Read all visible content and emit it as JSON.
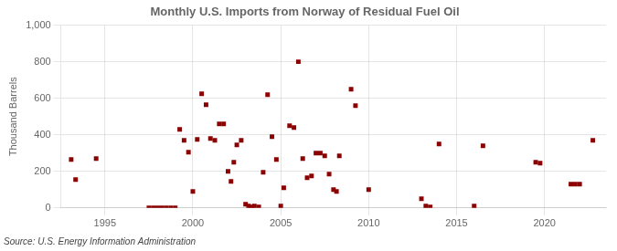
{
  "chart_data": {
    "type": "scatter",
    "title": "Monthly U.S. Imports from Norway of Residual Fuel Oil",
    "ylabel": "Thousand Barrels",
    "source": "Source: U.S. Energy Information Administration",
    "color": "#8b0000",
    "marker": "square",
    "grid": true,
    "xlim": [
      1992.5,
      2023.5
    ],
    "xticks": [
      1995,
      2000,
      2005,
      2010,
      2015,
      2020
    ],
    "ylim": [
      0,
      1000
    ],
    "yticks": [
      0,
      200,
      400,
      600,
      800,
      {
        "value": 1000,
        "label": "1,000"
      }
    ],
    "x": [
      1993.08,
      1993.33,
      1994.5,
      1997.5,
      1997.75,
      1998.0,
      1998.25,
      1998.5,
      1998.75,
      1999.0,
      1999.25,
      1999.5,
      1999.75,
      2000.0,
      2000.25,
      2000.5,
      2000.75,
      2001.0,
      2001.25,
      2001.5,
      2001.75,
      2002.0,
      2002.17,
      2002.33,
      2002.5,
      2002.75,
      2003.0,
      2003.17,
      2003.33,
      2003.5,
      2003.75,
      2004.0,
      2004.25,
      2004.5,
      2004.75,
      2005.0,
      2005.17,
      2005.5,
      2005.75,
      2006.0,
      2006.25,
      2006.5,
      2006.75,
      2007.0,
      2007.25,
      2007.5,
      2007.75,
      2008.0,
      2008.17,
      2008.33,
      2009.0,
      2009.25,
      2010.0,
      2013.0,
      2013.25,
      2013.5,
      2014.0,
      2016.0,
      2016.5,
      2019.5,
      2019.75,
      2021.5,
      2021.75,
      2022.0,
      2022.75
    ],
    "values": [
      265,
      155,
      270,
      0,
      0,
      0,
      0,
      0,
      0,
      0,
      430,
      370,
      305,
      90,
      375,
      625,
      565,
      380,
      370,
      460,
      460,
      200,
      145,
      250,
      345,
      370,
      20,
      10,
      5,
      10,
      5,
      195,
      620,
      390,
      265,
      10,
      110,
      450,
      440,
      800,
      270,
      165,
      175,
      300,
      300,
      285,
      185,
      100,
      90,
      285,
      650,
      560,
      100,
      50,
      10,
      5,
      350,
      10,
      340,
      250,
      245,
      130,
      130,
      130,
      370
    ]
  }
}
